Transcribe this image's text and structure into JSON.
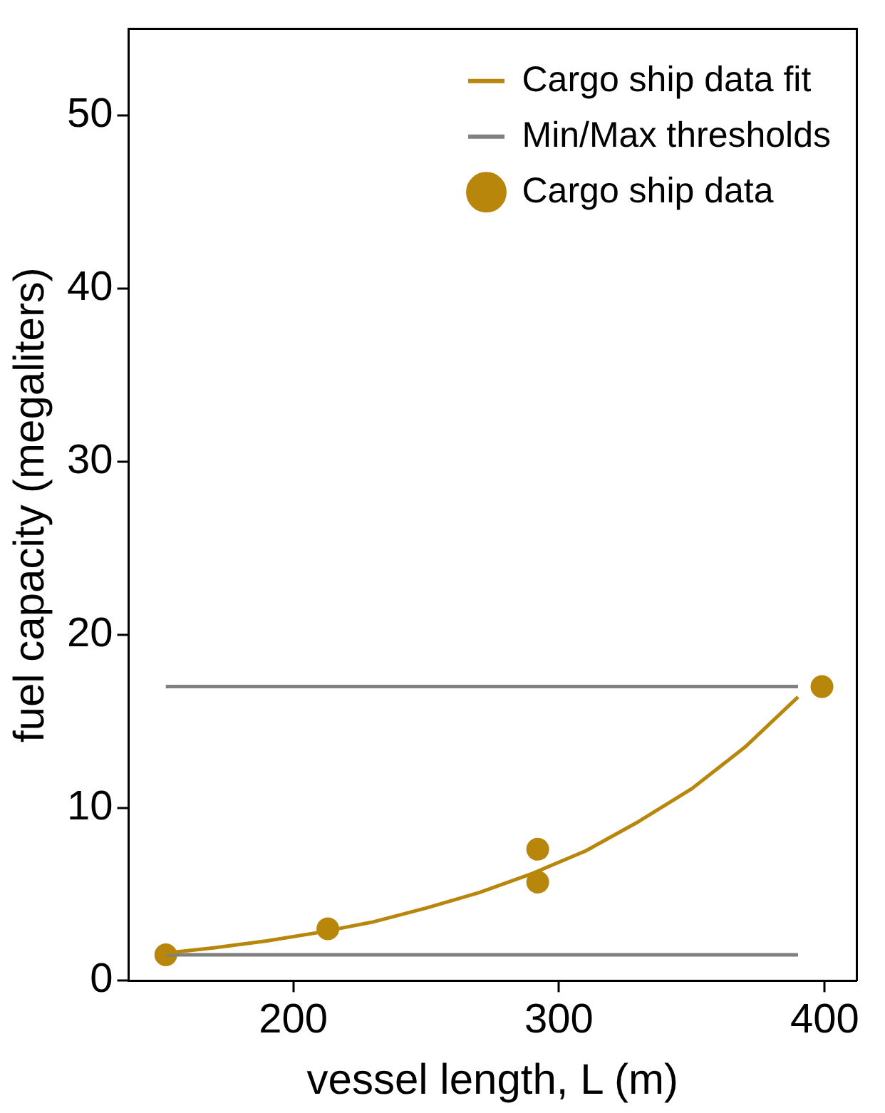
{
  "chart_data": {
    "type": "scatter",
    "xlabel": "vessel length, L (m)",
    "ylabel": "fuel capacity (megaliters)",
    "xlim": [
      138,
      412
    ],
    "xticks": [
      200,
      300,
      400
    ],
    "ylim": [
      0,
      55
    ],
    "yticks": [
      0,
      10,
      20,
      30,
      40,
      50
    ],
    "grid": false,
    "legend": "top right",
    "series": [
      {
        "name": "Cargo ship data fit",
        "type": "line",
        "color": "#b8860b",
        "marker": "none",
        "x": [
          152,
          170,
          190,
          210,
          230,
          250,
          270,
          290,
          310,
          330,
          350,
          370,
          390
        ],
        "values": [
          1.6,
          1.9,
          2.3,
          2.8,
          3.4,
          4.2,
          5.1,
          6.2,
          7.5,
          9.2,
          11.1,
          13.5,
          16.4
        ]
      },
      {
        "name": "Min/Max thresholds",
        "type": "line",
        "color": "#808080",
        "marker": "none",
        "x": [
          152,
          390
        ],
        "values": [
          17,
          17
        ]
      },
      {
        "type": "line",
        "color": "#808080",
        "marker": "none",
        "x": [
          152,
          390
        ],
        "values": [
          1.5,
          1.5
        ]
      },
      {
        "name": "Cargo ship data",
        "type": "scatter",
        "color": "#b8860b",
        "marker": "circle",
        "x": [
          152,
          213,
          292,
          292,
          399
        ],
        "values": [
          1.5,
          3.0,
          7.6,
          5.7,
          17.0
        ]
      }
    ]
  }
}
